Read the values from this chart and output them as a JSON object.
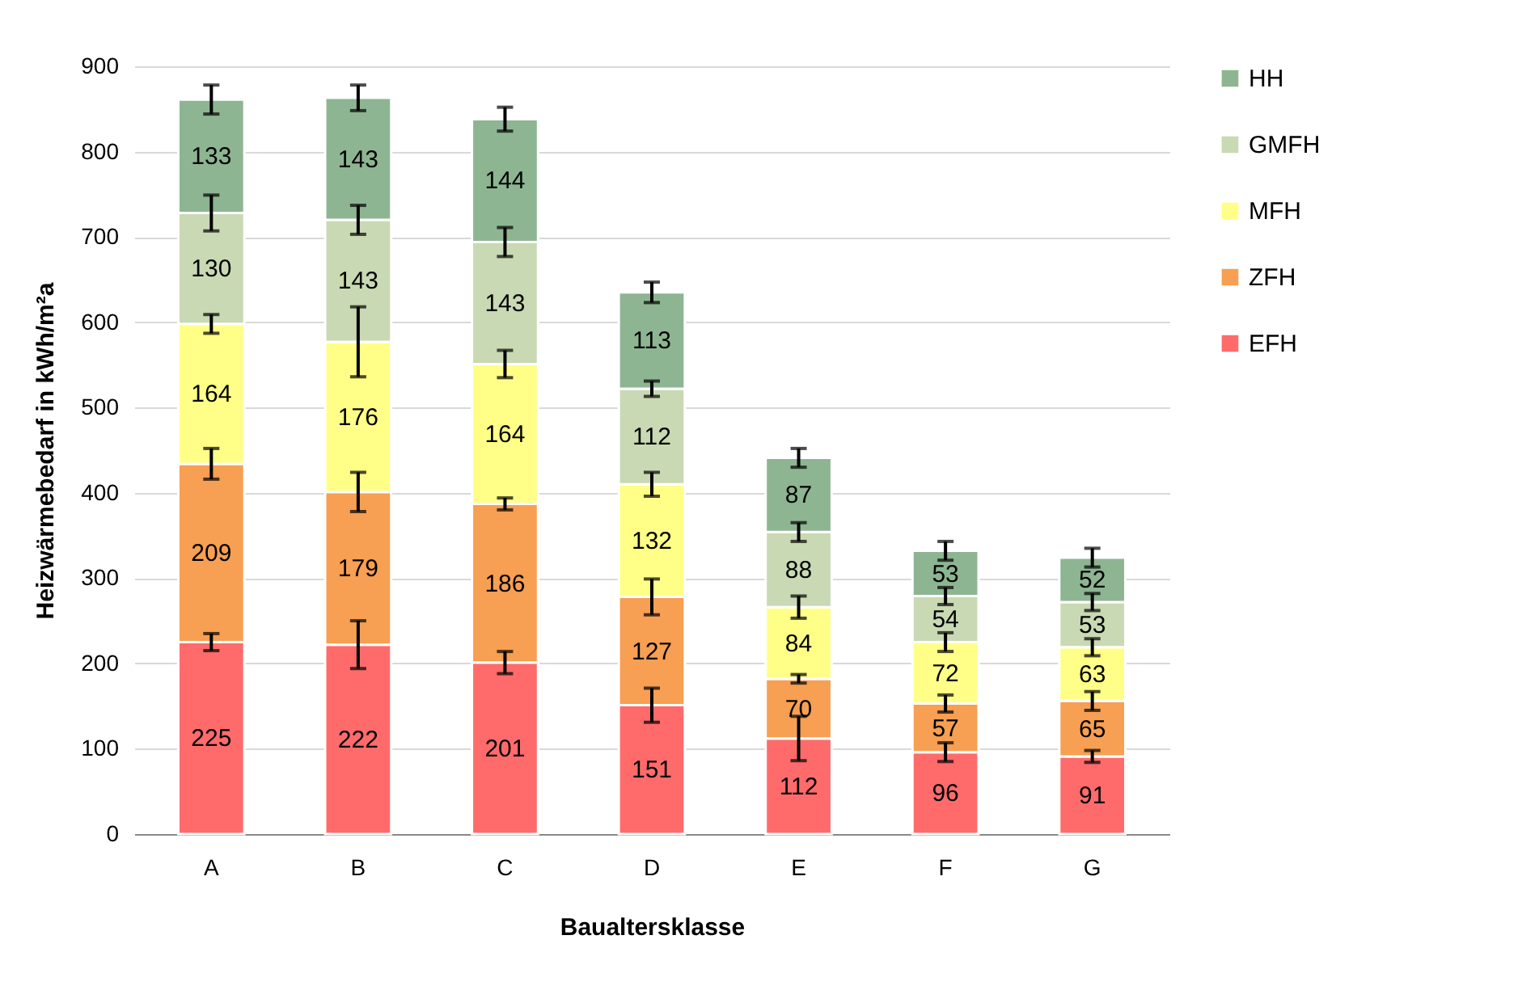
{
  "chart_data": {
    "type": "bar",
    "stacked": true,
    "xlabel": "Baualtersklasse",
    "ylabel": "Heizwärmebedarf  in kWh/m²a",
    "categories": [
      "A",
      "B",
      "C",
      "D",
      "E",
      "F",
      "G"
    ],
    "series": [
      {
        "name": "EFH",
        "color": "#ff6b6b",
        "values": [
          225,
          222,
          201,
          151,
          112,
          96,
          91
        ],
        "errors": [
          10,
          28,
          13,
          20,
          26,
          11,
          7
        ]
      },
      {
        "name": "ZFH",
        "color": "#f79f52",
        "values": [
          209,
          179,
          186,
          127,
          70,
          57,
          65
        ],
        "errors": [
          18,
          23,
          7,
          21,
          5,
          10,
          11
        ]
      },
      {
        "name": "MFH",
        "color": "#ffff88",
        "values": [
          164,
          176,
          164,
          132,
          84,
          72,
          63
        ],
        "errors": [
          11,
          41,
          16,
          14,
          13,
          11,
          10
        ]
      },
      {
        "name": "GMFH",
        "color": "#c9d9b3",
        "values": [
          130,
          143,
          143,
          112,
          88,
          54,
          53
        ],
        "errors": [
          21,
          17,
          17,
          9,
          11,
          10,
          10
        ]
      },
      {
        "name": "HH",
        "color": "#8db592",
        "values": [
          133,
          143,
          144,
          113,
          87,
          53,
          52
        ],
        "errors": [
          17,
          15,
          14,
          12,
          11,
          11,
          11
        ]
      }
    ],
    "ylim": [
      0,
      900
    ],
    "yticks": [
      0,
      100,
      200,
      300,
      400,
      500,
      600,
      700,
      800,
      900
    ],
    "grid": "y",
    "legend": "right",
    "data_labels": true
  }
}
